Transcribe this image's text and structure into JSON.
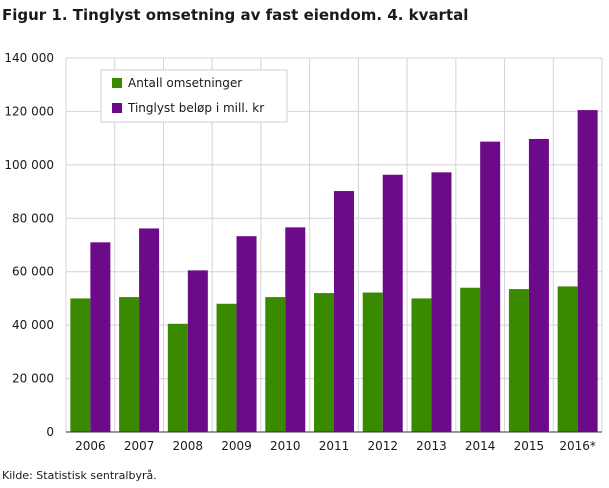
{
  "title": "Figur 1. Tinglyst omsetning av fast eiendom. 4. kvartal",
  "source": "Kilde: Statistisk sentralbyrå.",
  "colors": {
    "series1": "#3a8a00",
    "series2": "#6c0b8a",
    "grid": "#d4d4d4",
    "axis": "#333333"
  },
  "chart_data": {
    "type": "bar",
    "title": "Figur 1. Tinglyst omsetning av fast eiendom. 4. kvartal",
    "xlabel": "",
    "ylabel": "",
    "ylim": [
      0,
      140000
    ],
    "yticks": [
      0,
      20000,
      40000,
      60000,
      80000,
      100000,
      120000,
      140000
    ],
    "ytick_labels": [
      "0",
      "20 000",
      "40 000",
      "60 000",
      "80 000",
      "100 000",
      "120 000",
      "140 000"
    ],
    "categories": [
      "2006",
      "2007",
      "2008",
      "2009",
      "2010",
      "2011",
      "2012",
      "2013",
      "2014",
      "2015",
      "2016*"
    ],
    "series": [
      {
        "name": "Antall omsetninger",
        "values": [
          50000,
          50500,
          40500,
          48000,
          50500,
          52000,
          52200,
          50000,
          54000,
          53500,
          54500
        ]
      },
      {
        "name": "Tinglyst beløp i mill. kr",
        "values": [
          71000,
          76200,
          60500,
          73300,
          76600,
          90200,
          96300,
          97200,
          108700,
          109700,
          120500
        ]
      }
    ],
    "legend_position": "top-left",
    "grid": true
  }
}
